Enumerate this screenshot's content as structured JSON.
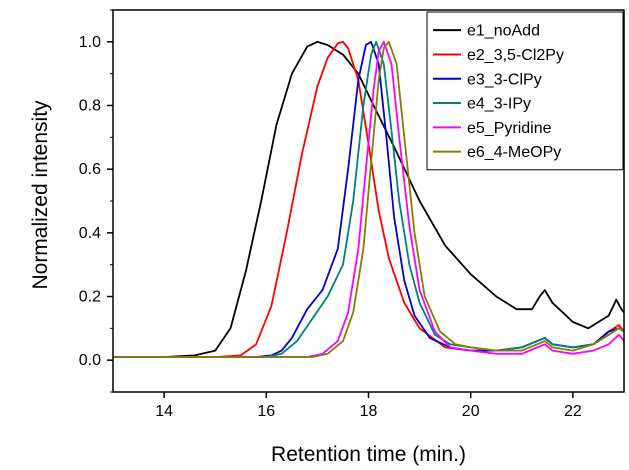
{
  "chart_data": {
    "type": "line",
    "xlabel": "Retention time (min.)",
    "ylabel": "Normalized intensity",
    "xlim": [
      13,
      23
    ],
    "ylim": [
      -0.1,
      1.1
    ],
    "xticks": [
      14,
      16,
      18,
      20,
      22
    ],
    "yticks": [
      0.0,
      0.2,
      0.4,
      0.6,
      0.8,
      1.0
    ],
    "xtick_labels": [
      "14",
      "16",
      "18",
      "20",
      "22"
    ],
    "ytick_labels": [
      "0.0",
      "0.2",
      "0.4",
      "0.6",
      "0.8",
      "1.0"
    ],
    "legend_position": "top-right",
    "grid": false,
    "series": [
      {
        "name": "e1_noAdd",
        "color": "#000000",
        "x": [
          13.0,
          14.0,
          14.6,
          15.0,
          15.3,
          15.6,
          15.9,
          16.2,
          16.5,
          16.8,
          17.0,
          17.2,
          17.5,
          17.8,
          18.1,
          18.5,
          19.0,
          19.5,
          20.0,
          20.5,
          20.9,
          21.2,
          21.35,
          21.45,
          21.6,
          21.8,
          22.0,
          22.3,
          22.5,
          22.7,
          22.85,
          22.95,
          23.0
        ],
        "y": [
          0.01,
          0.01,
          0.015,
          0.03,
          0.1,
          0.28,
          0.5,
          0.74,
          0.9,
          0.985,
          1.0,
          0.99,
          0.96,
          0.9,
          0.8,
          0.67,
          0.5,
          0.36,
          0.27,
          0.2,
          0.16,
          0.16,
          0.2,
          0.22,
          0.18,
          0.15,
          0.12,
          0.1,
          0.12,
          0.14,
          0.19,
          0.16,
          0.15
        ]
      },
      {
        "name": "e2_3,5-Cl2Py",
        "color": "#ff0000",
        "x": [
          13.0,
          15.0,
          15.5,
          15.8,
          16.1,
          16.4,
          16.7,
          17.0,
          17.2,
          17.4,
          17.5,
          17.6,
          17.8,
          18.0,
          18.2,
          18.4,
          18.7,
          19.0,
          19.5,
          20.0,
          20.5,
          21.0,
          21.3,
          21.45,
          21.6,
          22.0,
          22.4,
          22.7,
          22.9,
          23.0
        ],
        "y": [
          0.01,
          0.01,
          0.015,
          0.05,
          0.17,
          0.4,
          0.65,
          0.86,
          0.95,
          0.995,
          1.0,
          0.98,
          0.88,
          0.68,
          0.47,
          0.32,
          0.18,
          0.1,
          0.04,
          0.03,
          0.03,
          0.04,
          0.06,
          0.07,
          0.05,
          0.04,
          0.05,
          0.09,
          0.11,
          0.09
        ]
      },
      {
        "name": "e3_3-ClPy",
        "color": "#0000cc",
        "x": [
          13.0,
          15.8,
          16.1,
          16.3,
          16.5,
          16.8,
          17.1,
          17.4,
          17.6,
          17.8,
          17.95,
          18.05,
          18.2,
          18.35,
          18.5,
          18.7,
          18.9,
          19.2,
          19.6,
          20.0,
          20.5,
          21.0,
          21.3,
          21.45,
          21.6,
          22.0,
          22.4,
          22.7,
          22.9,
          23.0
        ],
        "y": [
          0.01,
          0.01,
          0.015,
          0.03,
          0.07,
          0.16,
          0.22,
          0.35,
          0.6,
          0.88,
          0.99,
          1.0,
          0.93,
          0.7,
          0.45,
          0.25,
          0.14,
          0.07,
          0.04,
          0.03,
          0.03,
          0.04,
          0.06,
          0.07,
          0.05,
          0.04,
          0.05,
          0.09,
          0.1,
          0.09
        ]
      },
      {
        "name": "e4_3-IPy",
        "color": "#008080",
        "x": [
          13.0,
          16.0,
          16.3,
          16.6,
          16.9,
          17.2,
          17.5,
          17.7,
          17.9,
          18.05,
          18.15,
          18.3,
          18.45,
          18.6,
          18.8,
          19.0,
          19.3,
          19.6,
          20.0,
          20.5,
          21.0,
          21.3,
          21.45,
          21.6,
          22.0,
          22.4,
          22.7,
          22.9,
          23.0
        ],
        "y": [
          0.01,
          0.01,
          0.02,
          0.06,
          0.13,
          0.2,
          0.3,
          0.5,
          0.8,
          0.96,
          1.0,
          0.93,
          0.72,
          0.5,
          0.3,
          0.18,
          0.08,
          0.05,
          0.04,
          0.03,
          0.04,
          0.06,
          0.07,
          0.05,
          0.04,
          0.05,
          0.08,
          0.1,
          0.09
        ]
      },
      {
        "name": "e5_Pyridine",
        "color": "#ff00ff",
        "x": [
          13.0,
          16.8,
          17.1,
          17.4,
          17.6,
          17.8,
          17.95,
          18.1,
          18.2,
          18.3,
          18.45,
          18.6,
          18.8,
          19.0,
          19.3,
          19.6,
          20.0,
          20.5,
          21.0,
          21.3,
          21.45,
          21.6,
          22.0,
          22.4,
          22.7,
          22.9,
          23.0
        ],
        "y": [
          0.01,
          0.01,
          0.02,
          0.06,
          0.15,
          0.35,
          0.6,
          0.85,
          0.97,
          1.0,
          0.93,
          0.7,
          0.42,
          0.22,
          0.09,
          0.04,
          0.03,
          0.02,
          0.02,
          0.04,
          0.05,
          0.03,
          0.02,
          0.03,
          0.05,
          0.08,
          0.06
        ]
      },
      {
        "name": "e6_4-MeOPy",
        "color": "#808000",
        "x": [
          13.0,
          16.9,
          17.2,
          17.5,
          17.7,
          17.9,
          18.05,
          18.2,
          18.3,
          18.4,
          18.55,
          18.7,
          18.9,
          19.1,
          19.4,
          19.7,
          20.0,
          20.5,
          21.0,
          21.3,
          21.45,
          21.6,
          22.0,
          22.4,
          22.7,
          22.9,
          23.0
        ],
        "y": [
          0.01,
          0.01,
          0.02,
          0.06,
          0.15,
          0.35,
          0.62,
          0.88,
          0.98,
          1.0,
          0.93,
          0.7,
          0.4,
          0.2,
          0.09,
          0.05,
          0.04,
          0.03,
          0.03,
          0.05,
          0.06,
          0.04,
          0.03,
          0.05,
          0.08,
          0.1,
          0.09
        ]
      }
    ]
  }
}
